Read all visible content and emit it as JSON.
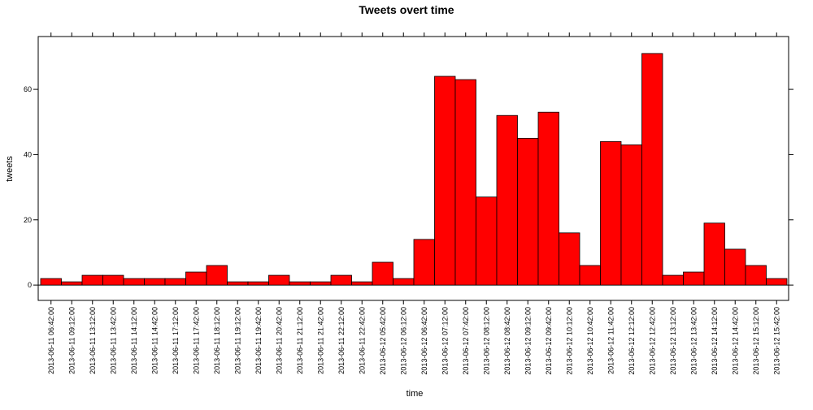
{
  "chart_data": {
    "type": "bar",
    "title": "Tweets overt time",
    "x_label": "time",
    "y_label": "tweets",
    "categories": [
      "2013-06-11 06:42:00",
      "2013-06-11 09:12:00",
      "2013-06-11 13:12:00",
      "2013-06-11 13:42:00",
      "2013-06-11 14:12:00",
      "2013-06-11 14:42:00",
      "2013-06-11 17:12:00",
      "2013-06-11 17:42:00",
      "2013-06-11 18:12:00",
      "2013-06-11 19:12:00",
      "2013-06-11 19:42:00",
      "2013-06-11 20:42:00",
      "2013-06-11 21:12:00",
      "2013-06-11 21:42:00",
      "2013-06-11 22:12:00",
      "2013-06-11 22:42:00",
      "2013-06-12 05:42:00",
      "2013-06-12 06:12:00",
      "2013-06-12 06:42:00",
      "2013-06-12 07:12:00",
      "2013-06-12 07:42:00",
      "2013-06-12 08:12:00",
      "2013-06-12 08:42:00",
      "2013-06-12 09:12:00",
      "2013-06-12 09:42:00",
      "2013-06-12 10:12:00",
      "2013-06-12 10:42:00",
      "2013-06-12 11:42:00",
      "2013-06-12 12:12:00",
      "2013-06-12 12:42:00",
      "2013-06-12 13:12:00",
      "2013-06-12 13:42:00",
      "2013-06-12 14:12:00",
      "2013-06-12 14:42:00",
      "2013-06-12 15:12:00",
      "2013-06-12 15:42:00"
    ],
    "values": [
      2,
      1,
      3,
      3,
      2,
      2,
      2,
      4,
      6,
      1,
      1,
      3,
      1,
      1,
      3,
      1,
      7,
      2,
      14,
      64,
      63,
      27,
      52,
      45,
      53,
      16,
      6,
      44,
      43,
      71,
      3,
      4,
      19,
      11,
      6,
      2
    ],
    "color": "#ff0000",
    "ylim": [
      -4.7,
      76.2
    ],
    "yticks": [
      0,
      20,
      40,
      60
    ],
    "grid": false
  }
}
